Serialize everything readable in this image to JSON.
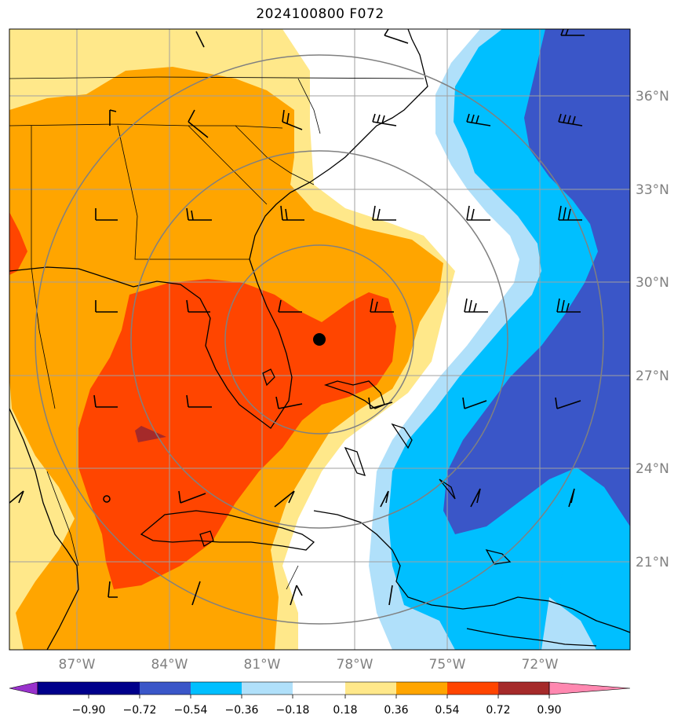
{
  "title": "2024100800 F072",
  "map": {
    "longitude_labels": [
      "87°W",
      "84°W",
      "81°W",
      "78°W",
      "75°W",
      "72°W"
    ],
    "latitude_labels": [
      "36°N",
      "33°N",
      "30°N",
      "27°N",
      "24°N",
      "21°N"
    ],
    "storm_center_marker": "filled-circle",
    "range_rings": "concentric-circles",
    "wind_barbs": "shown"
  },
  "colorbar": {
    "tick_labels": [
      "−0.90",
      "−0.72",
      "−0.54",
      "−0.36",
      "−0.18",
      "0.18",
      "0.36",
      "0.54",
      "0.72",
      "0.90"
    ],
    "colors": [
      "#9932cc",
      "#00008b",
      "#3a56c8",
      "#00bfff",
      "#b0e0fa",
      "#ffffff",
      "#ffe88a",
      "#ffa500",
      "#ff4500",
      "#a52a2a",
      "#ff88b0"
    ]
  }
}
